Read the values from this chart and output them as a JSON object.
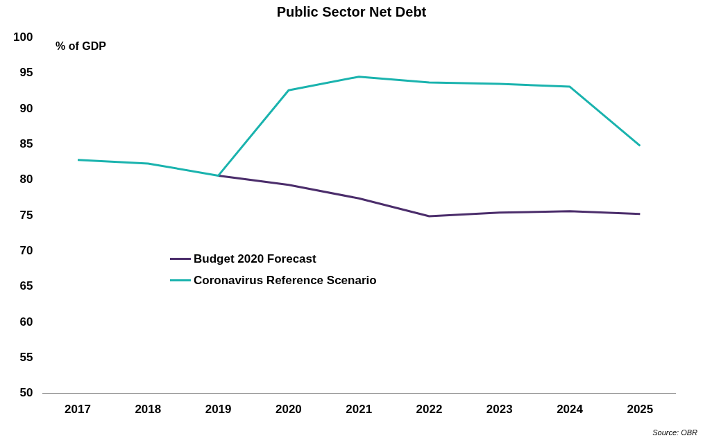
{
  "chart_data": {
    "type": "line",
    "title": "Public Sector Net Debt",
    "ylabel": "% of GDP",
    "categories": [
      "2017",
      "2018",
      "2019",
      "2020",
      "2021",
      "2022",
      "2023",
      "2024",
      "2025"
    ],
    "series": [
      {
        "name": "Budget 2020 Forecast",
        "color": "#4b2d6b",
        "values": [
          null,
          null,
          80.6,
          79.3,
          77.4,
          74.9,
          75.4,
          75.6,
          75.2
        ]
      },
      {
        "name": "Coronavirus Reference Scenario",
        "color": "#1ab3ae",
        "values": [
          82.8,
          82.3,
          80.6,
          92.6,
          94.5,
          93.7,
          93.5,
          93.1,
          84.8
        ]
      }
    ],
    "ylim": [
      50,
      100
    ],
    "yticks": [
      50,
      55,
      60,
      65,
      70,
      75,
      80,
      85,
      90,
      95,
      100
    ],
    "grid": false,
    "legend": "center",
    "marker": "none",
    "line_style": "solid",
    "annotations": [
      "Source:  OBR"
    ]
  }
}
